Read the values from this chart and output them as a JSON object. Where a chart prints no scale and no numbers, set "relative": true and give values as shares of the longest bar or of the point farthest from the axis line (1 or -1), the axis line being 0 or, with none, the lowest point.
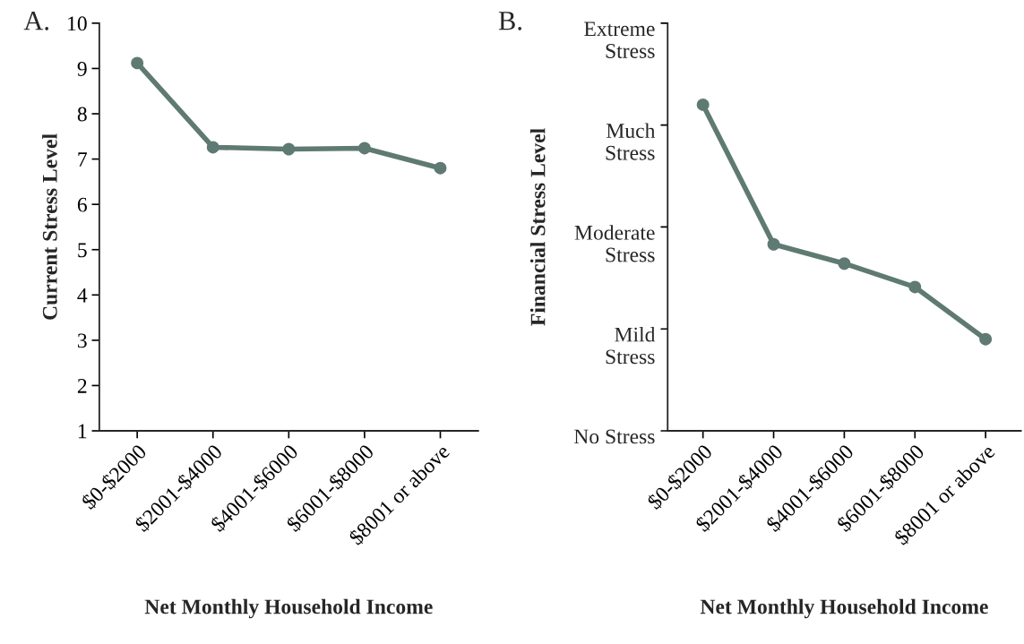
{
  "chart_data": [
    {
      "type": "line",
      "annotations": [
        "A."
      ],
      "xlabel": "Net Monthly Household Income",
      "ylabel": "Current Stress Level",
      "categories": [
        "$0-$2000",
        "$2001-$4000",
        "$4001-$6000",
        "$6001-$8000",
        "$8001 or above"
      ],
      "series": [
        {
          "color": "#5f7a72",
          "values": [
            9.12,
            7.26,
            7.22,
            7.24,
            6.8
          ]
        }
      ],
      "ylim": [
        1,
        10
      ],
      "yticks": [
        1,
        2,
        3,
        4,
        5,
        6,
        7,
        8,
        9,
        10
      ],
      "marker": "circle",
      "line_style": "solid",
      "grid": false,
      "legend": false
    },
    {
      "type": "line",
      "annotations": [
        "B.",
        "No Stress",
        "Mild\nStress",
        "Moderate\nStress",
        "Much\nStress",
        "Extreme\nStress"
      ],
      "xlabel": "Net Monthly Household Income",
      "ylabel": "Financial Stress Level",
      "categories": [
        "$0-$2000",
        "$2001-$4000",
        "$4001-$6000",
        "$6001-$8000",
        "$8001 or above"
      ],
      "series": [
        {
          "color": "#5f7a72",
          "values": [
            1,
            0.572,
            0.513,
            0.441,
            0.281
          ]
        }
      ],
      "relative": true,
      "ylim": [
        0,
        1.25
      ],
      "marker": "circle",
      "line_style": "solid",
      "grid": false,
      "legend": false
    }
  ]
}
